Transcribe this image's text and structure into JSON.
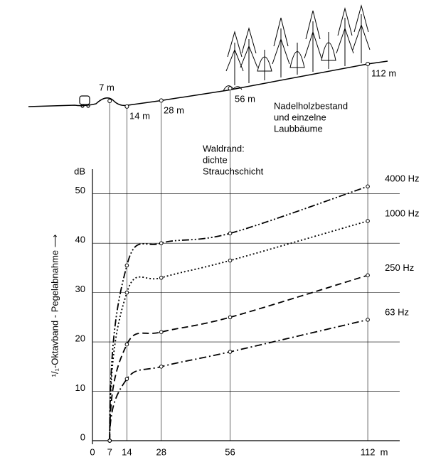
{
  "chart_data": {
    "type": "line",
    "y_label": "¹/₁-Oktavband - Pegelabnahme ⟶",
    "y_unit": "dB",
    "x_unit": "m",
    "x": [
      7,
      14,
      28,
      56,
      112
    ],
    "series": [
      {
        "name": "4000 Hz",
        "color": "#000000",
        "dash": "10 3 2 3 2 3",
        "values": [
          0,
          35.5,
          40,
          42,
          51.5
        ]
      },
      {
        "name": "1000 Hz",
        "color": "#000000",
        "dash": "2 3",
        "values": [
          0,
          30,
          33,
          36.5,
          44.5
        ]
      },
      {
        "name": "250 Hz",
        "color": "#000000",
        "dash": "9 5",
        "values": [
          0,
          19.5,
          22,
          25,
          33.5
        ]
      },
      {
        "name": "63 Hz",
        "color": "#000000",
        "dash": "10 4 2 4",
        "values": [
          0,
          12.5,
          15,
          18,
          24.5
        ]
      }
    ],
    "xlim": [
      0,
      125
    ],
    "ylim": [
      0,
      55
    ],
    "xticks": [
      0,
      7,
      14,
      28,
      56,
      112
    ],
    "yticks": [
      0,
      10,
      20,
      30,
      40,
      50
    ],
    "grid": true,
    "terrain_labels": [
      "7 m",
      "14 m",
      "28 m",
      "56 m",
      "112 m"
    ],
    "annotations": [
      {
        "lines": [
          "Nadelholzbestand",
          "und einzelne",
          "Laubbäume"
        ]
      },
      {
        "lines": [
          "Waldrand:",
          "dichte",
          "Strauchschicht"
        ]
      }
    ]
  }
}
